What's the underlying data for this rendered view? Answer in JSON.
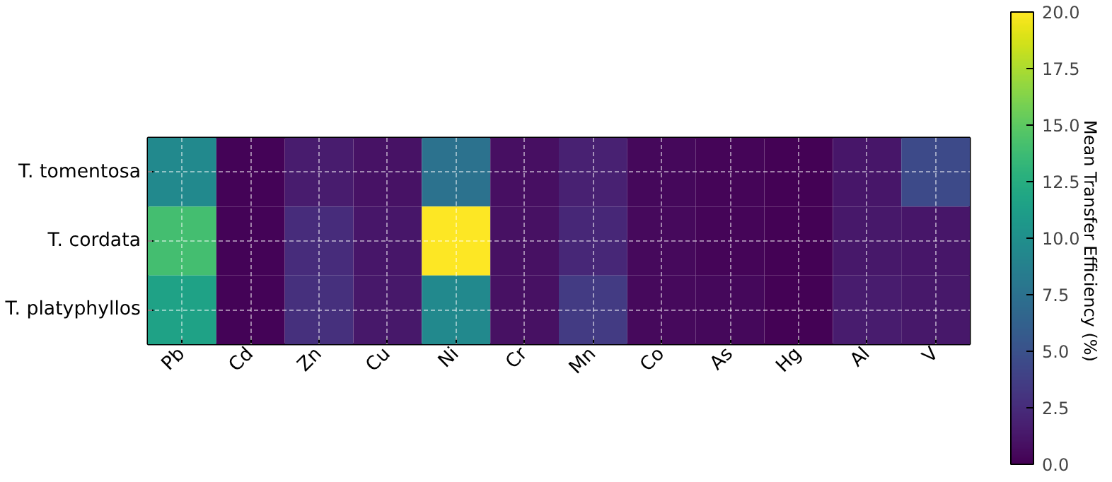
{
  "chart_data": {
    "type": "heatmap",
    "categories": [
      "Pb",
      "Cd",
      "Zn",
      "Cu",
      "Ni",
      "Cr",
      "Mn",
      "Co",
      "As",
      "Hg",
      "Al",
      "V"
    ],
    "y_categories": [
      "T. tomentosa",
      "T. cordata",
      "T. platyphyllos"
    ],
    "cells": [
      [
        9.5,
        0.2,
        1.5,
        1.0,
        7.5,
        0.8,
        1.8,
        0.4,
        0.3,
        0.1,
        1.2,
        4.5
      ],
      [
        14,
        0.2,
        2.5,
        1.2,
        20,
        0.9,
        2.2,
        0.5,
        0.3,
        0.1,
        1.3,
        1.2
      ],
      [
        11.5,
        0.2,
        2.8,
        1.3,
        9.5,
        0.9,
        3.5,
        0.5,
        0.4,
        0.1,
        1.5,
        1.3
      ]
    ],
    "clabel": "Mean Transfer Efficiency (%)",
    "clim": [
      0,
      20
    ],
    "cticks": [
      {
        "value": 0,
        "label": "0.0"
      },
      {
        "value": 2.5,
        "label": "2.5"
      },
      {
        "value": 5,
        "label": "5.0"
      },
      {
        "value": 7.5,
        "label": "7.5"
      },
      {
        "value": 10,
        "label": "10.0"
      },
      {
        "value": 12.5,
        "label": "12.5"
      },
      {
        "value": 15,
        "label": "15.0"
      },
      {
        "value": 17.5,
        "label": "17.5"
      },
      {
        "value": 20,
        "label": "20.0"
      }
    ],
    "grid": true
  }
}
